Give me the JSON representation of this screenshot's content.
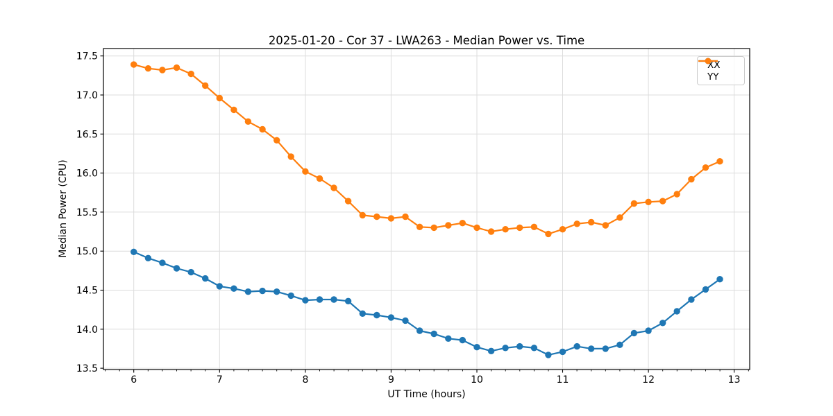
{
  "chart_data": {
    "type": "line",
    "title": "2025-01-20 - Cor 37 - LWA263 - Median Power vs. Time",
    "xlabel": "UT Time (hours)",
    "ylabel": "Median Power (CPU)",
    "x": [
      6.0,
      6.167,
      6.333,
      6.5,
      6.667,
      6.833,
      7.0,
      7.167,
      7.333,
      7.5,
      7.667,
      7.833,
      8.0,
      8.167,
      8.333,
      8.5,
      8.667,
      8.833,
      9.0,
      9.167,
      9.333,
      9.5,
      9.667,
      9.833,
      10.0,
      10.167,
      10.333,
      10.5,
      10.667,
      10.833,
      11.0,
      11.167,
      11.333,
      11.5,
      11.667,
      11.833,
      12.0,
      12.167,
      12.333,
      12.5,
      12.667,
      12.833
    ],
    "series": [
      {
        "name": "XX",
        "color": "#1f77b4",
        "marker": "circle",
        "values": [
          14.99,
          14.91,
          14.85,
          14.78,
          14.73,
          14.65,
          14.55,
          14.52,
          14.48,
          14.49,
          14.48,
          14.43,
          14.37,
          14.38,
          14.38,
          14.36,
          14.2,
          14.18,
          14.15,
          14.11,
          13.98,
          13.94,
          13.88,
          13.86,
          13.77,
          13.72,
          13.76,
          13.78,
          13.76,
          13.67,
          13.71,
          13.78,
          13.75,
          13.75,
          13.8,
          13.95,
          13.98,
          14.08,
          14.23,
          14.38,
          14.51,
          14.64
        ]
      },
      {
        "name": "YY",
        "color": "#ff7f0e",
        "marker": "circle",
        "values": [
          17.39,
          17.34,
          17.32,
          17.35,
          17.27,
          17.12,
          16.96,
          16.81,
          16.66,
          16.56,
          16.42,
          16.21,
          16.02,
          15.93,
          15.81,
          15.64,
          15.46,
          15.44,
          15.42,
          15.44,
          15.31,
          15.3,
          15.33,
          15.36,
          15.3,
          15.25,
          15.28,
          15.3,
          15.31,
          15.22,
          15.28,
          15.35,
          15.37,
          15.33,
          15.43,
          15.61,
          15.63,
          15.64,
          15.73,
          15.92,
          16.07,
          16.15
        ]
      }
    ],
    "xlim": [
      5.646,
      13.181
    ],
    "ylim": [
      13.483,
      17.595
    ],
    "xticks": [
      6,
      7,
      8,
      9,
      10,
      11,
      12,
      13
    ],
    "xtick_labels": [
      "6",
      "7",
      "8",
      "9",
      "10",
      "11",
      "12",
      "13"
    ],
    "yticks": [
      13.5,
      14.0,
      14.5,
      15.0,
      15.5,
      16.0,
      16.5,
      17.0,
      17.5
    ],
    "ytick_labels": [
      "13.5",
      "14.0",
      "14.5",
      "15.0",
      "15.5",
      "16.0",
      "16.5",
      "17.0",
      "17.5"
    ],
    "x_minor_step": 0.16667,
    "grid": true,
    "legend": {
      "location": "upper right",
      "entries": [
        "XX",
        "YY"
      ]
    },
    "style": {
      "background": "#ffffff",
      "grid_color": "#dcdcdc",
      "spine_color": "#000000",
      "text_color": "#000000"
    }
  }
}
